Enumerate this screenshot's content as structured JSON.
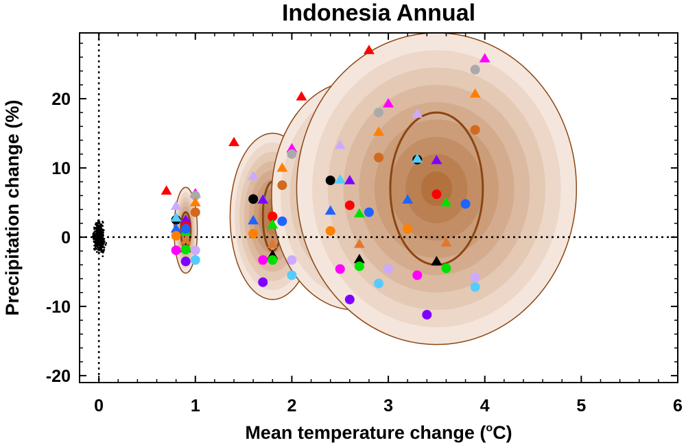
{
  "chart_data": {
    "type": "scatter",
    "title": "Indonesia Annual",
    "xlabel": "Mean temperature change (",
    "xlabel_sup": "o",
    "xlabel_suffix": "C)",
    "ylabel": "Precipitation change (%)",
    "xlim": [
      -0.2,
      6
    ],
    "ylim": [
      -21,
      29.5
    ],
    "x_ticks": [
      0,
      1,
      2,
      3,
      4,
      5,
      6
    ],
    "y_ticks": [
      -20,
      -10,
      0,
      10,
      20
    ],
    "x_tick_labels": [
      "0",
      "1",
      "2",
      "3",
      "4",
      "5",
      "6"
    ],
    "y_tick_labels": [
      "-20",
      "-10",
      "0",
      "10",
      "20"
    ],
    "reference_lines": {
      "x": 0,
      "y": 0,
      "style": "dotted"
    },
    "grid": false,
    "legend": "none",
    "natural_variability_cloud": {
      "center": [
        0,
        0
      ],
      "x_spread": 0.05,
      "y_spread": 1.6,
      "color": "#000000"
    },
    "ellipses": [
      {
        "center": [
          0.9,
          1.0
        ],
        "outer": [
          0.12,
          6.2
        ],
        "inner": [
          0.05,
          2.6
        ]
      },
      {
        "center": [
          1.8,
          3.0
        ],
        "outer": [
          0.44,
          12.0
        ],
        "inner": [
          0.1,
          5.0
        ]
      },
      {
        "center": [
          2.65,
          6.0
        ],
        "outer": [
          0.86,
          16.5
        ],
        "inner": [
          0.21,
          7.5
        ]
      },
      {
        "center": [
          3.5,
          7.0
        ],
        "outer": [
          1.45,
          22.5
        ],
        "inner": [
          0.48,
          11.0
        ]
      }
    ],
    "ellipse_colors": {
      "edge": "#8B4513",
      "fill_light": "#f4e6dc",
      "fill_dark": "#b3713e"
    },
    "series": [
      {
        "marker": "triangle",
        "color": "#ff0000",
        "points": [
          [
            0.7,
            6.7
          ],
          [
            1.4,
            13.7
          ],
          [
            2.1,
            20.3
          ],
          [
            2.8,
            27.0
          ]
        ]
      },
      {
        "marker": "triangle",
        "color": "#ff00ff",
        "points": [
          [
            1.0,
            6.3
          ],
          [
            2.0,
            12.8
          ],
          [
            3.0,
            19.3
          ],
          [
            4.0,
            25.8
          ]
        ]
      },
      {
        "marker": "circle",
        "color": "#aaaaaa",
        "points": [
          [
            1.0,
            6.0
          ],
          [
            2.0,
            12.0
          ],
          [
            2.9,
            18.0
          ],
          [
            3.9,
            24.2
          ]
        ]
      },
      {
        "marker": "triangle",
        "color": "#ff8000",
        "points": [
          [
            1.0,
            5.0
          ],
          [
            1.9,
            10.0
          ],
          [
            2.9,
            15.2
          ],
          [
            3.9,
            20.7
          ]
        ]
      },
      {
        "marker": "circle",
        "color": "#d2691e",
        "points": [
          [
            1.0,
            3.6
          ],
          [
            1.9,
            7.5
          ],
          [
            2.9,
            11.5
          ],
          [
            3.9,
            15.5
          ]
        ]
      },
      {
        "marker": "triangle",
        "color": "#ccaaff",
        "points": [
          [
            0.8,
            4.5
          ],
          [
            1.6,
            8.8
          ],
          [
            2.5,
            13.3
          ],
          [
            3.3,
            17.8
          ]
        ]
      },
      {
        "marker": "circle",
        "color": "#000000",
        "points": [
          [
            0.8,
            2.5
          ],
          [
            1.6,
            5.5
          ],
          [
            2.4,
            8.2
          ],
          [
            3.3,
            11.2
          ]
        ]
      },
      {
        "marker": "triangle",
        "color": "#55ccff",
        "points": [
          [
            0.8,
            2.8
          ],
          [
            1.7,
            5.5
          ],
          [
            2.5,
            8.3
          ],
          [
            3.3,
            11.3
          ]
        ]
      },
      {
        "marker": "triangle",
        "color": "#8000ff",
        "points": [
          [
            0.9,
            2.5
          ],
          [
            1.7,
            5.4
          ],
          [
            2.6,
            8.2
          ],
          [
            3.5,
            11.1
          ]
        ]
      },
      {
        "marker": "triangle",
        "color": "#1e64ff",
        "points": [
          [
            0.8,
            1.2
          ],
          [
            1.6,
            2.4
          ],
          [
            2.4,
            3.8
          ],
          [
            3.2,
            5.4
          ]
        ]
      },
      {
        "marker": "circle",
        "color": "#ff0000",
        "points": [
          [
            0.9,
            1.6
          ],
          [
            1.8,
            3.0
          ],
          [
            2.6,
            4.6
          ],
          [
            3.5,
            6.2
          ]
        ]
      },
      {
        "marker": "triangle",
        "color": "#00e000",
        "points": [
          [
            0.9,
            0.8
          ],
          [
            1.8,
            1.8
          ],
          [
            2.7,
            3.4
          ],
          [
            3.6,
            5.0
          ]
        ]
      },
      {
        "marker": "circle",
        "color": "#1e64ff",
        "points": [
          [
            0.9,
            1.2
          ],
          [
            1.9,
            2.3
          ],
          [
            2.8,
            3.6
          ],
          [
            3.8,
            4.8
          ]
        ]
      },
      {
        "marker": "circle",
        "color": "#ff8000",
        "points": [
          [
            0.8,
            0.2
          ],
          [
            1.6,
            0.5
          ],
          [
            2.4,
            0.9
          ],
          [
            3.2,
            1.2
          ]
        ]
      },
      {
        "marker": "triangle",
        "color": "#e07830",
        "points": [
          [
            0.9,
            -0.5
          ],
          [
            1.8,
            -1.0
          ],
          [
            2.7,
            -1.0
          ],
          [
            3.6,
            -0.8
          ]
        ]
      },
      {
        "marker": "triangle",
        "color": "#000000",
        "points": [
          [
            0.9,
            -1.6
          ],
          [
            1.8,
            -2.6
          ],
          [
            2.7,
            -3.2
          ],
          [
            3.5,
            -3.5
          ]
        ]
      },
      {
        "marker": "circle",
        "color": "#ff00ff",
        "points": [
          [
            0.8,
            -1.9
          ],
          [
            1.7,
            -3.3
          ],
          [
            2.5,
            -4.6
          ],
          [
            3.3,
            -5.5
          ]
        ]
      },
      {
        "marker": "circle",
        "color": "#00e000",
        "points": [
          [
            0.9,
            -1.8
          ],
          [
            1.8,
            -3.3
          ],
          [
            2.7,
            -4.2
          ],
          [
            3.6,
            -4.5
          ]
        ]
      },
      {
        "marker": "circle",
        "color": "#ccaaff",
        "points": [
          [
            1.0,
            -1.9
          ],
          [
            2.0,
            -3.3
          ],
          [
            3.0,
            -4.6
          ],
          [
            3.9,
            -5.8
          ]
        ]
      },
      {
        "marker": "circle",
        "color": "#55ccff",
        "points": [
          [
            1.0,
            -3.3
          ],
          [
            2.0,
            -5.5
          ],
          [
            2.9,
            -6.7
          ],
          [
            3.9,
            -7.2
          ]
        ]
      },
      {
        "marker": "circle",
        "color": "#8000ff",
        "points": [
          [
            0.9,
            -3.5
          ],
          [
            1.7,
            -6.5
          ],
          [
            2.6,
            -9.0
          ],
          [
            3.4,
            -11.2
          ]
        ]
      }
    ]
  }
}
